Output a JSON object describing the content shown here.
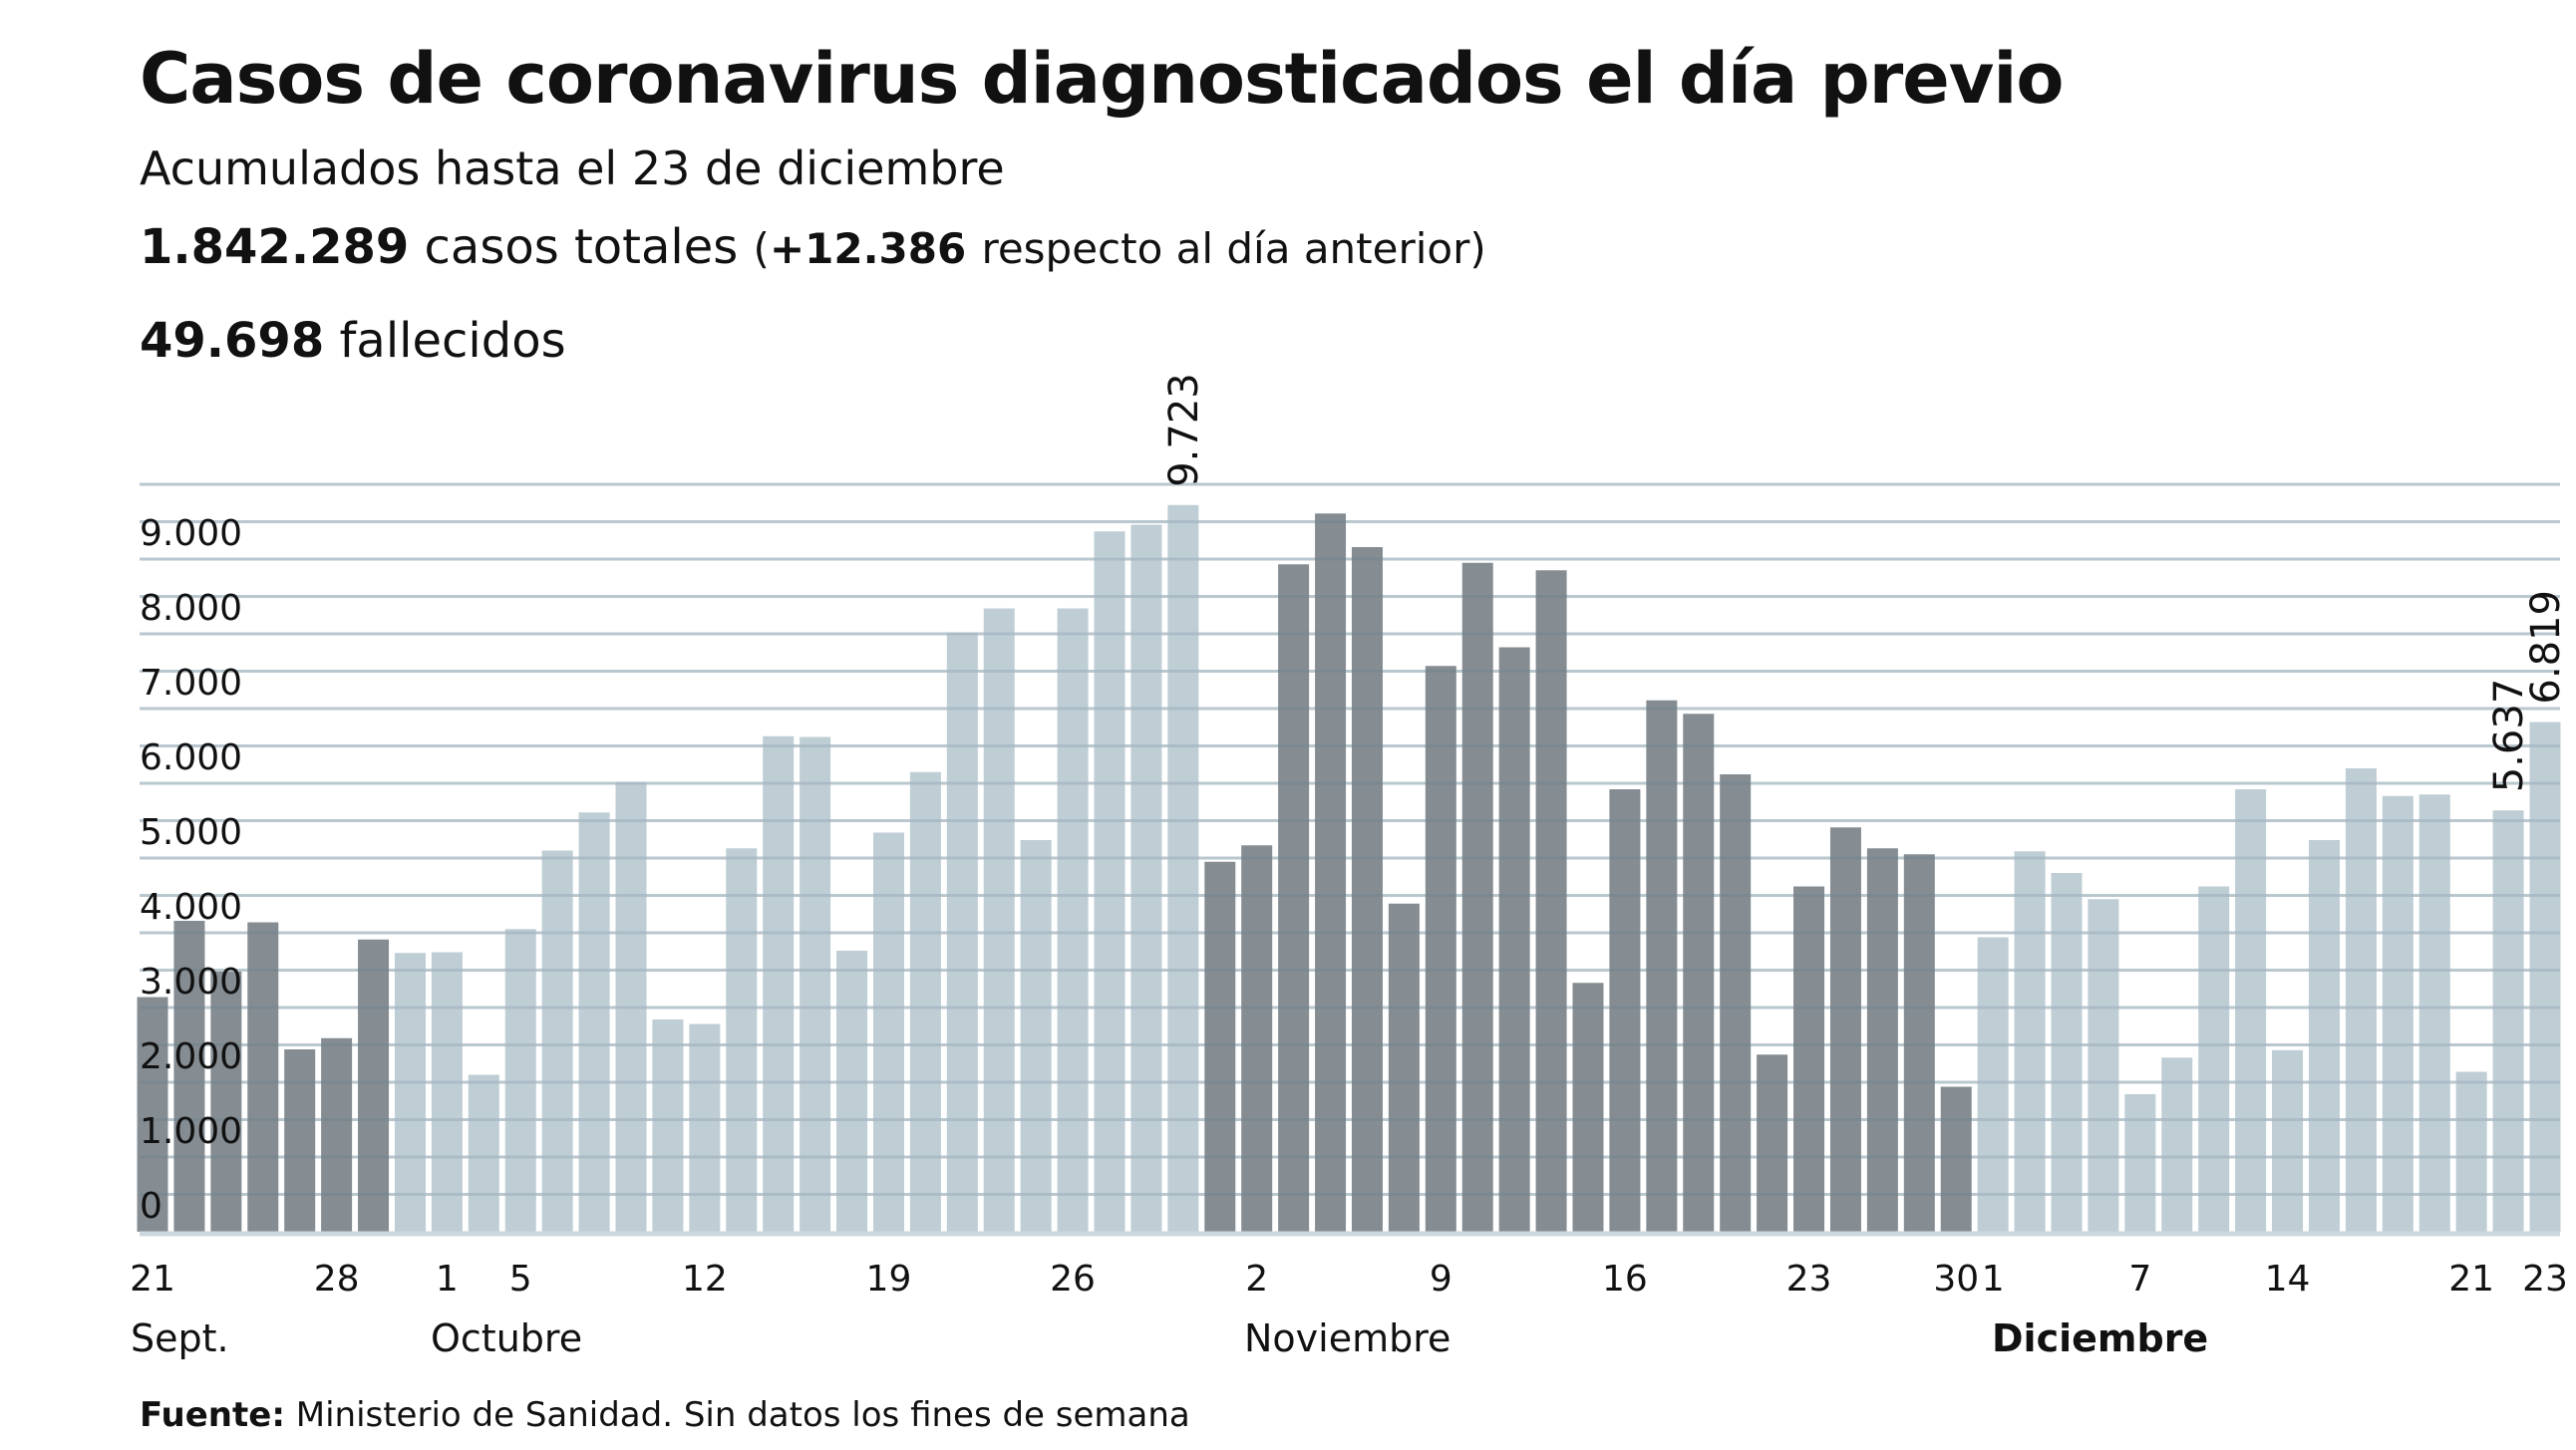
{
  "header": {
    "title": "Casos de coronavirus diagnosticados el día previo",
    "subtitle": "Acumulados hasta el 23 de diciembre",
    "total_cases": "1.842.289",
    "total_cases_label": "casos totales",
    "delta_open": "(",
    "delta_value": "+12.386",
    "delta_label": "respecto al día anterior)",
    "deaths": "49.698",
    "deaths_label": "fallecidos"
  },
  "footer": {
    "source_label": "Fuente:",
    "source_text": "Ministerio de Sanidad. Sin datos los fines de semana"
  },
  "chart_data": {
    "type": "bar",
    "title": "",
    "xlabel": "",
    "ylabel": "",
    "ylim": [
      0,
      10000
    ],
    "y_ticks": [
      "0",
      "1.000",
      "2.000",
      "3.000",
      "4.000",
      "5.000",
      "6.000",
      "7.000",
      "8.000",
      "9.000"
    ],
    "y_tick_values": [
      0,
      1000,
      2000,
      3000,
      4000,
      5000,
      6000,
      7000,
      8000,
      9000
    ],
    "grid": true,
    "grid_step": 500,
    "colors": {
      "dark": "#7e878d",
      "light": "#bccad3",
      "grid": "#cdd8de"
    },
    "categories": [
      "21",
      "",
      "",
      "",
      "",
      "28",
      "",
      "",
      "1",
      "",
      "5",
      "",
      "",
      "",
      "",
      "12",
      "",
      "",
      "",
      "",
      "19",
      "",
      "",
      "",
      "",
      "26",
      "",
      "",
      "",
      "",
      "2",
      "",
      "",
      "",
      "",
      "9",
      "",
      "",
      "",
      "",
      "16",
      "",
      "",
      "",
      "",
      "23",
      "",
      "",
      "",
      "30",
      "1",
      "",
      "",
      "",
      "7",
      "",
      "",
      "",
      "14",
      "",
      "",
      "",
      "",
      "21",
      "",
      "23"
    ],
    "values": [
      3140,
      4160,
      3480,
      4140,
      2440,
      2590,
      3910,
      3730,
      3740,
      2100,
      4050,
      5100,
      5610,
      6020,
      2840,
      2780,
      5130,
      6630,
      6620,
      3760,
      5340,
      6150,
      8020,
      8340,
      5240,
      8340,
      9370,
      9460,
      9723,
      4950,
      5170,
      8930,
      9610,
      9160,
      4390,
      7570,
      8950,
      7820,
      8850,
      3330,
      5920,
      7110,
      6930,
      6120,
      2370,
      4620,
      5410,
      5130,
      5050,
      1940,
      3940,
      5090,
      4800,
      4450,
      1840,
      2330,
      4620,
      5920,
      2430,
      5240,
      6200,
      5830,
      5850,
      2140,
      5637,
      6819
    ],
    "shade": [
      "dark",
      "dark",
      "dark",
      "dark",
      "dark",
      "dark",
      "dark",
      "light",
      "light",
      "light",
      "light",
      "light",
      "light",
      "light",
      "light",
      "light",
      "light",
      "light",
      "light",
      "light",
      "light",
      "light",
      "light",
      "light",
      "light",
      "light",
      "light",
      "light",
      "light",
      "dark",
      "dark",
      "dark",
      "dark",
      "dark",
      "dark",
      "dark",
      "dark",
      "dark",
      "dark",
      "dark",
      "dark",
      "dark",
      "dark",
      "dark",
      "dark",
      "dark",
      "dark",
      "dark",
      "dark",
      "dark",
      "light",
      "light",
      "light",
      "light",
      "light",
      "light",
      "light",
      "light",
      "light",
      "light",
      "light",
      "light",
      "light",
      "light",
      "light",
      "light"
    ],
    "value_labels": [
      {
        "index": 28,
        "text": "9.723"
      },
      {
        "index": 64,
        "text": "5.637"
      },
      {
        "index": 65,
        "text": "6.819"
      }
    ],
    "months": [
      {
        "label": "Sept.",
        "index": 0,
        "bold": false
      },
      {
        "label": "Octubre",
        "index": 10,
        "bold": false
      },
      {
        "label": "Noviembre",
        "index": 32,
        "bold": false
      },
      {
        "label": "Diciembre",
        "index": 53,
        "bold": true
      }
    ]
  }
}
